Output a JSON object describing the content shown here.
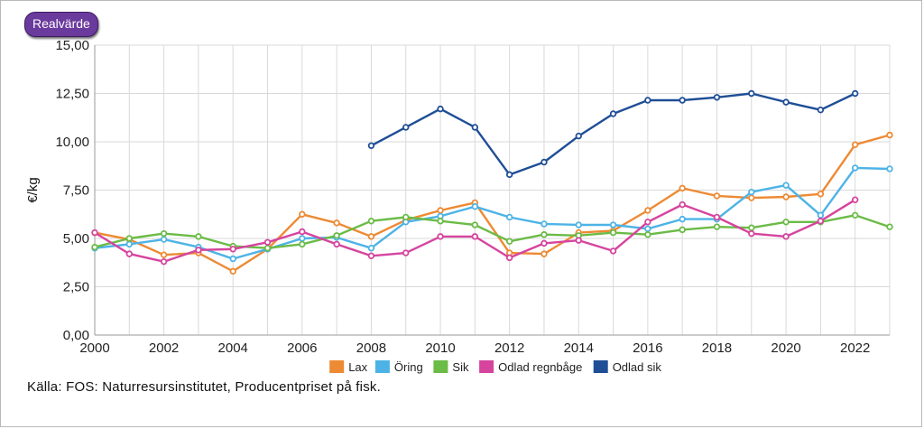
{
  "badge_label": "Realvärde",
  "source_text": "Källa: FOS: Naturresursinstitutet, Producentpriset på fisk.",
  "chart_data": {
    "type": "line",
    "title": "",
    "xlabel": "",
    "ylabel": "€/kg",
    "xlim": [
      2000,
      2023
    ],
    "ylim": [
      0,
      15
    ],
    "x_ticks": [
      "2000",
      "2002",
      "2004",
      "2006",
      "2008",
      "2010",
      "2012",
      "2014",
      "2016",
      "2018",
      "2020",
      "2022"
    ],
    "y_ticks": [
      "0,00",
      "2,50",
      "5,00",
      "7,50",
      "10,00",
      "12,50",
      "15,00"
    ],
    "grid": true,
    "legend_position": "bottom",
    "series": [
      {
        "name": "Lax",
        "color": "#ed8a34",
        "x": [
          2000,
          2001,
          2002,
          2003,
          2004,
          2005,
          2006,
          2007,
          2008,
          2009,
          2010,
          2011,
          2012,
          2013,
          2014,
          2015,
          2016,
          2017,
          2018,
          2019,
          2020,
          2021,
          2022,
          2023
        ],
        "values": [
          5.3,
          4.95,
          4.15,
          4.25,
          3.3,
          4.45,
          6.25,
          5.8,
          5.1,
          5.95,
          6.45,
          6.85,
          4.25,
          4.2,
          5.3,
          5.4,
          6.45,
          7.6,
          7.2,
          7.1,
          7.15,
          7.3,
          9.85,
          10.35
        ]
      },
      {
        "name": "Öring",
        "color": "#4db3e6",
        "x": [
          2000,
          2001,
          2002,
          2003,
          2004,
          2005,
          2006,
          2007,
          2008,
          2009,
          2010,
          2011,
          2012,
          2013,
          2014,
          2015,
          2016,
          2017,
          2018,
          2019,
          2020,
          2021,
          2022,
          2023
        ],
        "values": [
          4.5,
          4.7,
          4.95,
          4.55,
          3.95,
          4.45,
          5.0,
          5.05,
          4.5,
          5.85,
          6.15,
          6.65,
          6.1,
          5.75,
          5.7,
          5.7,
          5.5,
          6.0,
          6.0,
          7.4,
          7.75,
          6.2,
          8.65,
          8.6
        ]
      },
      {
        "name": "Sik",
        "color": "#6bbb47",
        "x": [
          2000,
          2001,
          2002,
          2003,
          2004,
          2005,
          2006,
          2007,
          2008,
          2009,
          2010,
          2011,
          2012,
          2013,
          2014,
          2015,
          2016,
          2017,
          2018,
          2019,
          2020,
          2021,
          2022,
          2023
        ],
        "values": [
          4.55,
          5.0,
          5.25,
          5.1,
          4.6,
          4.5,
          4.7,
          5.15,
          5.9,
          6.1,
          5.9,
          5.7,
          4.85,
          5.2,
          5.15,
          5.3,
          5.2,
          5.45,
          5.6,
          5.55,
          5.85,
          5.85,
          6.2,
          5.6
        ]
      },
      {
        "name": "Odlad regnbåge",
        "color": "#d6449e",
        "x": [
          2000,
          2001,
          2002,
          2003,
          2004,
          2005,
          2006,
          2007,
          2008,
          2009,
          2010,
          2011,
          2012,
          2013,
          2014,
          2015,
          2016,
          2017,
          2018,
          2019,
          2020,
          2021,
          2022
        ],
        "values": [
          5.3,
          4.2,
          3.8,
          4.4,
          4.45,
          4.8,
          5.35,
          4.7,
          4.1,
          4.25,
          5.1,
          5.1,
          4.0,
          4.75,
          4.9,
          4.35,
          5.85,
          6.75,
          6.1,
          5.25,
          5.1,
          5.9,
          7.0
        ]
      },
      {
        "name": "Odlad sik",
        "color": "#1f4e96",
        "x": [
          2008,
          2009,
          2010,
          2011,
          2012,
          2013,
          2014,
          2015,
          2016,
          2017,
          2018,
          2019,
          2020,
          2021,
          2022
        ],
        "values": [
          9.8,
          10.75,
          11.7,
          10.75,
          8.3,
          8.95,
          10.3,
          11.45,
          12.15,
          12.15,
          12.3,
          12.5,
          12.05,
          11.65,
          12.5
        ]
      }
    ]
  }
}
